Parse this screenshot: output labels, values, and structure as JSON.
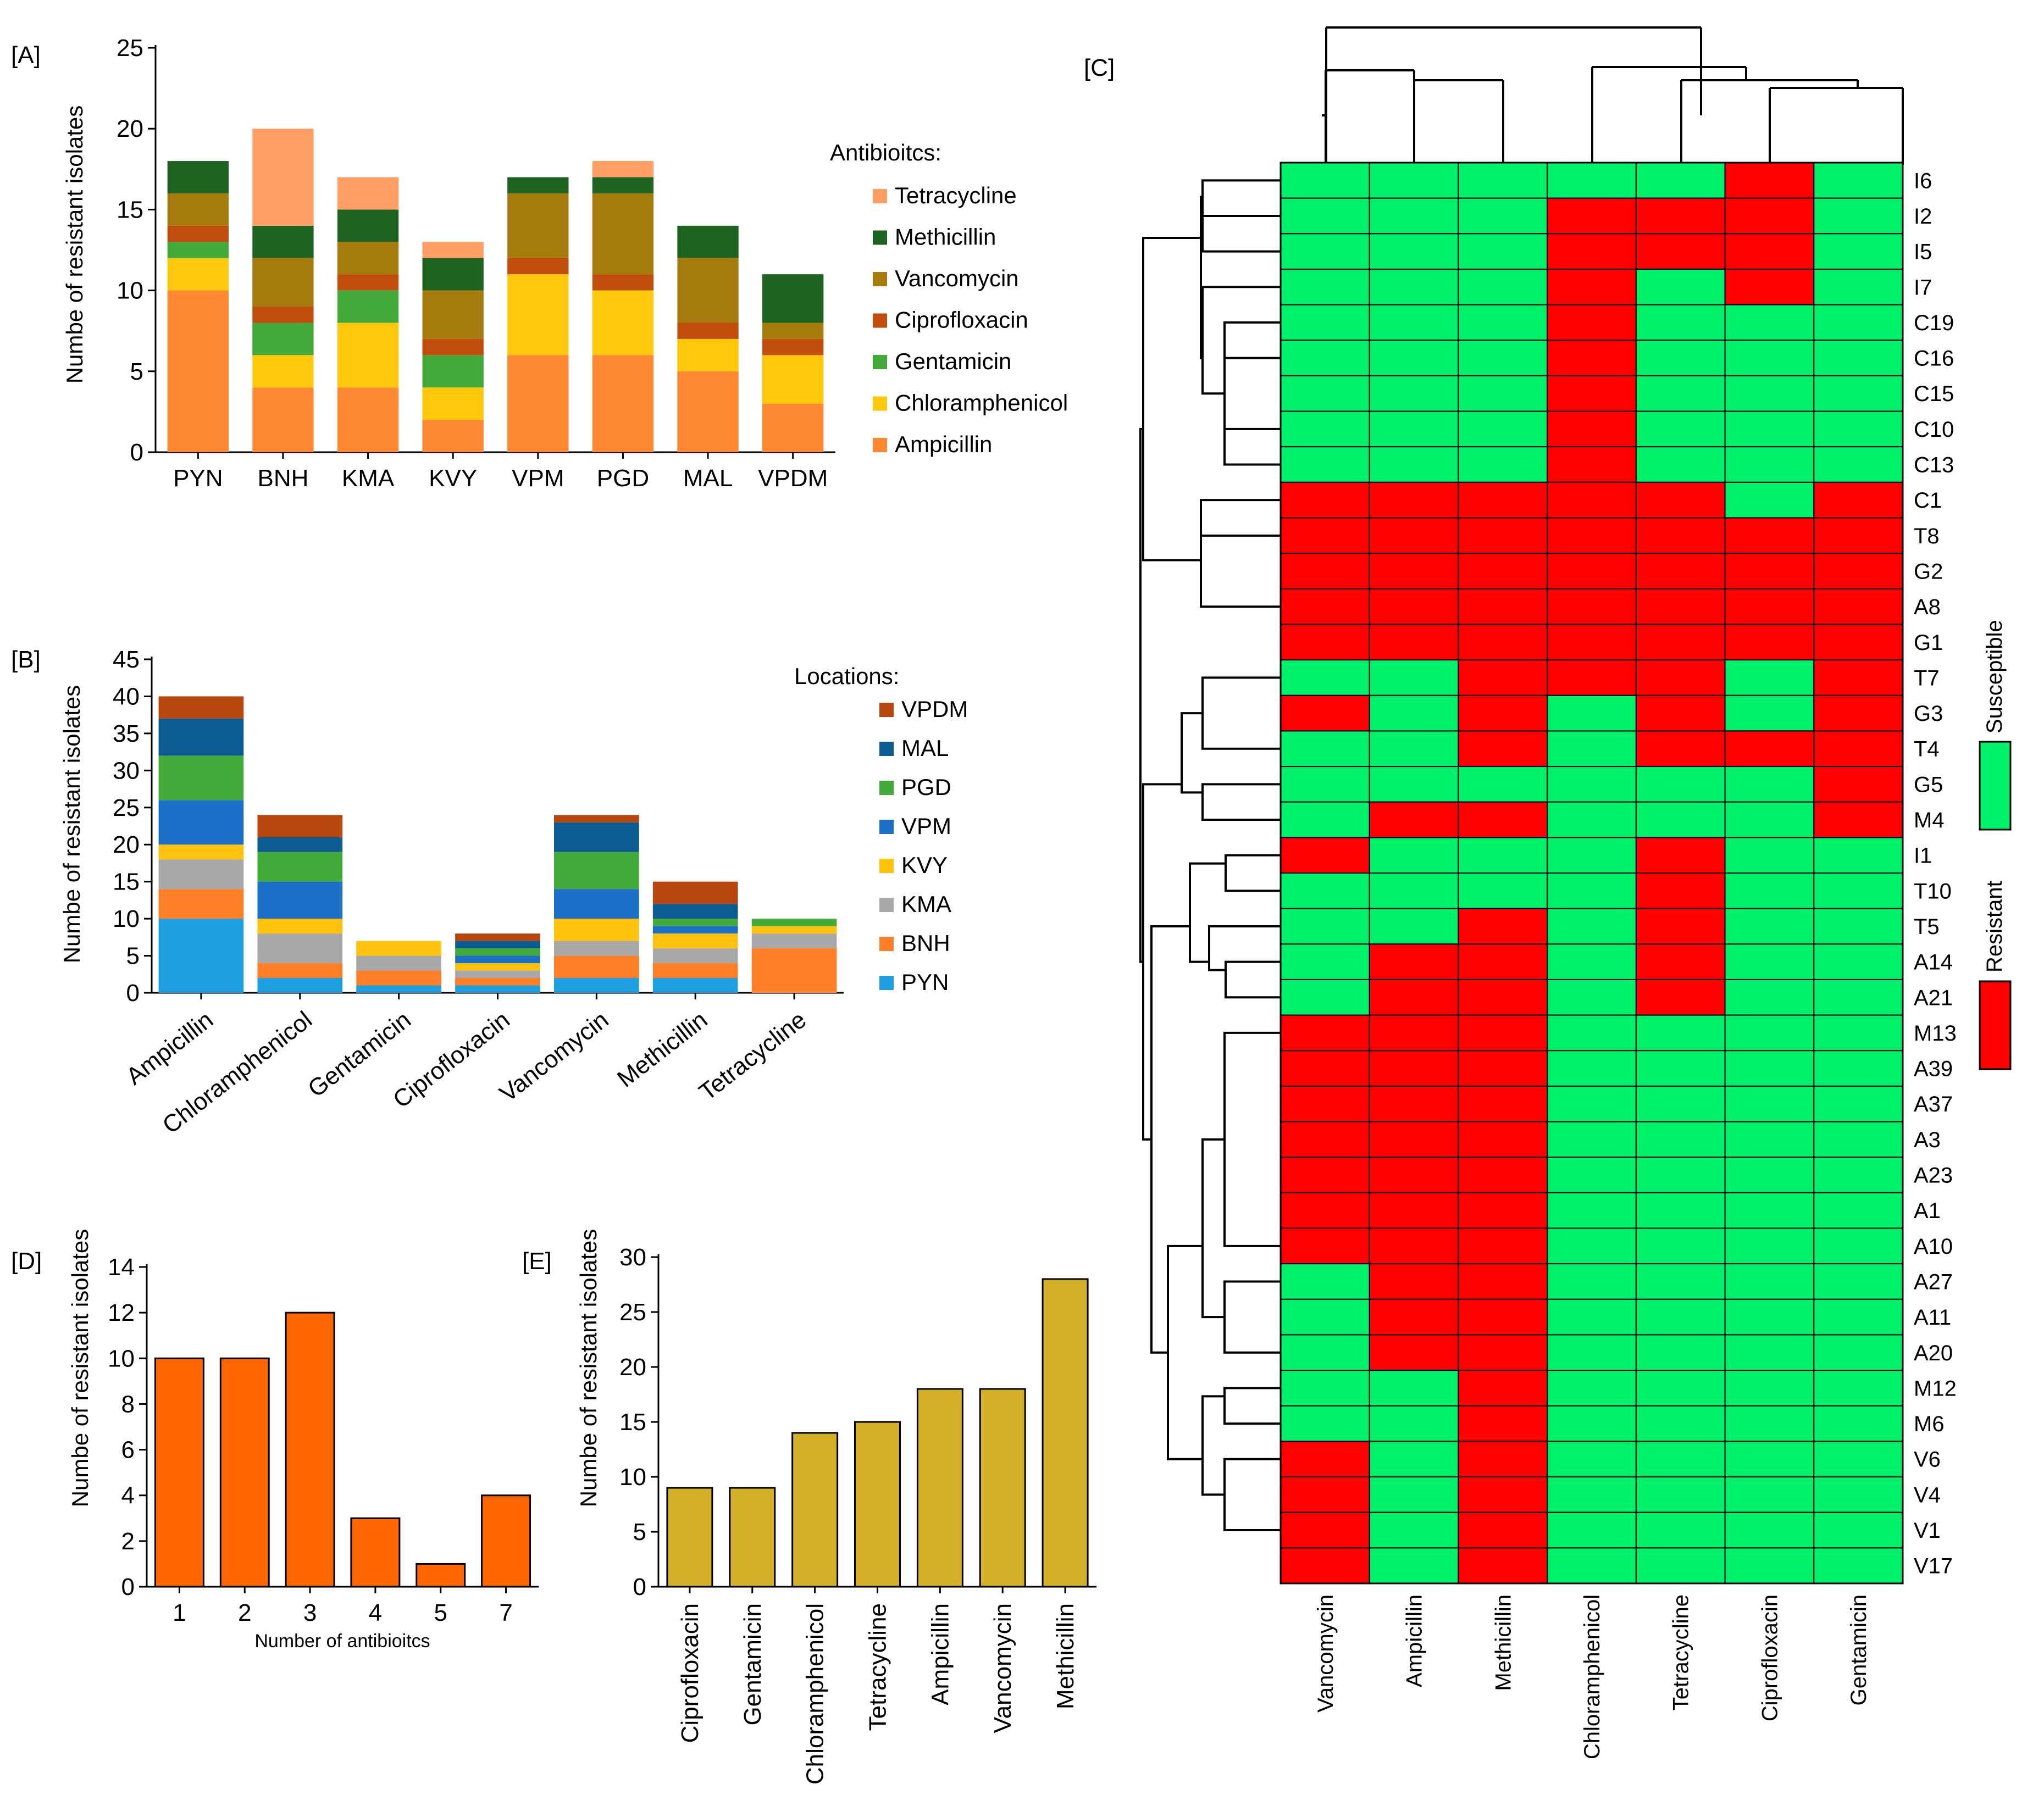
{
  "chart_data": [
    {
      "panel": "[A]",
      "type": "bar",
      "stacked": true,
      "ylabel": "Numbe of resistant isolates",
      "ylim": [
        0,
        25
      ],
      "yticks": [
        0,
        5,
        10,
        15,
        20,
        25
      ],
      "categories": [
        "PYN",
        "BNH",
        "KMA",
        "KVY",
        "VPM",
        "PGD",
        "MAL",
        "VPDM"
      ],
      "legend_title": "Antibioitcs:",
      "legend_position": "right",
      "series": [
        {
          "name": "Ampicillin",
          "color": "#FF8833",
          "values": [
            10,
            4,
            4,
            2,
            6,
            6,
            5,
            3
          ]
        },
        {
          "name": "Chloramphenicol",
          "color": "#FFC80A",
          "values": [
            2,
            2,
            4,
            2,
            5,
            4,
            2,
            3
          ]
        },
        {
          "name": "Gentamicin",
          "color": "#43AA3A",
          "values": [
            1,
            2,
            2,
            2,
            0,
            0,
            0,
            0
          ]
        },
        {
          "name": "Ciprofloxacin",
          "color": "#C24E0E",
          "values": [
            1,
            1,
            1,
            1,
            1,
            1,
            1,
            1
          ]
        },
        {
          "name": "Vancomycin",
          "color": "#A67B0E",
          "values": [
            2,
            3,
            2,
            3,
            4,
            5,
            4,
            1
          ]
        },
        {
          "name": "Methicillin",
          "color": "#1F6321",
          "values": [
            2,
            2,
            2,
            2,
            1,
            1,
            2,
            3
          ]
        },
        {
          "name": "Tetracycline",
          "color": "#FF9F66",
          "values": [
            0,
            6,
            2,
            1,
            0,
            1,
            0,
            0
          ]
        }
      ]
    },
    {
      "panel": "[B]",
      "type": "bar",
      "stacked": true,
      "ylabel": "Numbe of resistant isolates",
      "ylim": [
        0,
        45
      ],
      "yticks": [
        0,
        5,
        10,
        15,
        20,
        25,
        30,
        35,
        40,
        45
      ],
      "categories": [
        "Ampicillin",
        "Chloramphenicol",
        "Gentamicin",
        "Ciprofloxacin",
        "Vancomycin",
        "Methicillin",
        "Tetracycline"
      ],
      "legend_title": "Locations:",
      "legend_position": "right",
      "series": [
        {
          "name": "PYN",
          "color": "#1E9FDF",
          "values": [
            10,
            2,
            1,
            1,
            2,
            2,
            0
          ]
        },
        {
          "name": "BNH",
          "color": "#FF7F27",
          "values": [
            4,
            2,
            2,
            1,
            3,
            2,
            6
          ]
        },
        {
          "name": "KMA",
          "color": "#A8A8A8",
          "values": [
            4,
            4,
            2,
            1,
            2,
            2,
            2
          ]
        },
        {
          "name": "KVY",
          "color": "#FFC20E",
          "values": [
            2,
            2,
            2,
            1,
            3,
            2,
            1
          ]
        },
        {
          "name": "VPM",
          "color": "#1B6FC6",
          "values": [
            6,
            5,
            0,
            1,
            4,
            1,
            0
          ]
        },
        {
          "name": "PGD",
          "color": "#43AA3A",
          "values": [
            6,
            4,
            0,
            1,
            5,
            1,
            1
          ]
        },
        {
          "name": "MAL",
          "color": "#0D5C91",
          "values": [
            5,
            2,
            0,
            1,
            4,
            2,
            0
          ]
        },
        {
          "name": "VPDM",
          "color": "#B8470E",
          "values": [
            3,
            3,
            0,
            1,
            1,
            3,
            0
          ]
        }
      ]
    },
    {
      "panel": "[D]",
      "type": "bar",
      "xlabel": "Number of antibioitcs",
      "ylabel": "Numbe of resistant isolates",
      "ylim": [
        0,
        14
      ],
      "yticks": [
        0,
        2,
        4,
        6,
        8,
        10,
        12,
        14
      ],
      "categories": [
        "1",
        "2",
        "3",
        "4",
        "5",
        "7"
      ],
      "values": [
        10,
        10,
        12,
        3,
        1,
        4
      ],
      "color": "#FF6600"
    },
    {
      "panel": "[E]",
      "type": "bar",
      "ylabel": "Numbe of resistant isolates",
      "ylim": [
        0,
        30
      ],
      "yticks": [
        0,
        5,
        10,
        15,
        20,
        25,
        30
      ],
      "categories": [
        "Ciprofloxacin",
        "Gentamicin",
        "Chloramphenicol",
        "Tetracycline",
        "Ampicillin",
        "Vancomycin",
        "Methicillin"
      ],
      "values": [
        9,
        9,
        14,
        15,
        18,
        18,
        28
      ],
      "color": "#D4AF28"
    },
    {
      "panel": "[C]",
      "type": "heatmap",
      "columns": [
        "Vancomycin",
        "Ampicillin",
        "Methicillin",
        "Chloramphenicol",
        "Tetracycline",
        "Ciprofloxacin",
        "Gentamicin"
      ],
      "rows": [
        "I6",
        "I2",
        "I5",
        "I7",
        "C19",
        "C16",
        "C15",
        "C10",
        "C13",
        "C1",
        "T8",
        "G2",
        "A8",
        "G1",
        "T7",
        "G3",
        "T4",
        "G5",
        "M4",
        "I1",
        "T10",
        "T5",
        "A14",
        "A21",
        "M13",
        "A39",
        "A37",
        "A3",
        "A23",
        "A1",
        "A10",
        "A27",
        "A11",
        "A20",
        "M12",
        "M6",
        "V6",
        "V4",
        "V1",
        "V17"
      ],
      "matrix": [
        [
          0,
          0,
          0,
          0,
          0,
          1,
          0
        ],
        [
          0,
          0,
          0,
          1,
          1,
          1,
          0
        ],
        [
          0,
          0,
          0,
          1,
          1,
          1,
          0
        ],
        [
          0,
          0,
          0,
          1,
          0,
          1,
          0
        ],
        [
          0,
          0,
          0,
          1,
          0,
          0,
          0
        ],
        [
          0,
          0,
          0,
          1,
          0,
          0,
          0
        ],
        [
          0,
          0,
          0,
          1,
          0,
          0,
          0
        ],
        [
          0,
          0,
          0,
          1,
          0,
          0,
          0
        ],
        [
          0,
          0,
          0,
          1,
          0,
          0,
          0
        ],
        [
          1,
          1,
          1,
          1,
          1,
          0,
          1
        ],
        [
          1,
          1,
          1,
          1,
          1,
          1,
          1
        ],
        [
          1,
          1,
          1,
          1,
          1,
          1,
          1
        ],
        [
          1,
          1,
          1,
          1,
          1,
          1,
          1
        ],
        [
          1,
          1,
          1,
          1,
          1,
          1,
          1
        ],
        [
          0,
          0,
          1,
          1,
          1,
          0,
          1
        ],
        [
          1,
          0,
          1,
          0,
          1,
          0,
          1
        ],
        [
          0,
          0,
          1,
          0,
          1,
          1,
          1
        ],
        [
          0,
          0,
          0,
          0,
          0,
          0,
          1
        ],
        [
          0,
          1,
          1,
          0,
          0,
          0,
          1
        ],
        [
          1,
          0,
          0,
          0,
          1,
          0,
          0
        ],
        [
          0,
          0,
          0,
          0,
          1,
          0,
          0
        ],
        [
          0,
          0,
          1,
          0,
          1,
          0,
          0
        ],
        [
          0,
          1,
          1,
          0,
          1,
          0,
          0
        ],
        [
          0,
          1,
          1,
          0,
          1,
          0,
          0
        ],
        [
          1,
          1,
          1,
          0,
          0,
          0,
          0
        ],
        [
          1,
          1,
          1,
          0,
          0,
          0,
          0
        ],
        [
          1,
          1,
          1,
          0,
          0,
          0,
          0
        ],
        [
          1,
          1,
          1,
          0,
          0,
          0,
          0
        ],
        [
          1,
          1,
          1,
          0,
          0,
          0,
          0
        ],
        [
          1,
          1,
          1,
          0,
          0,
          0,
          0
        ],
        [
          1,
          1,
          1,
          0,
          0,
          0,
          0
        ],
        [
          0,
          1,
          1,
          0,
          0,
          0,
          0
        ],
        [
          0,
          1,
          1,
          0,
          0,
          0,
          0
        ],
        [
          0,
          1,
          1,
          0,
          0,
          0,
          0
        ],
        [
          0,
          0,
          1,
          0,
          0,
          0,
          0
        ],
        [
          0,
          0,
          1,
          0,
          0,
          0,
          0
        ],
        [
          1,
          0,
          1,
          0,
          0,
          0,
          0
        ],
        [
          1,
          0,
          1,
          0,
          0,
          0,
          0
        ],
        [
          1,
          0,
          1,
          0,
          0,
          0,
          0
        ],
        [
          1,
          0,
          1,
          0,
          0,
          0,
          0
        ]
      ],
      "legend": {
        "susceptible": "Susceptible",
        "resistant": "Resistant",
        "susceptible_color": "#00F06A",
        "resistant_color": "#FF0000"
      }
    }
  ]
}
